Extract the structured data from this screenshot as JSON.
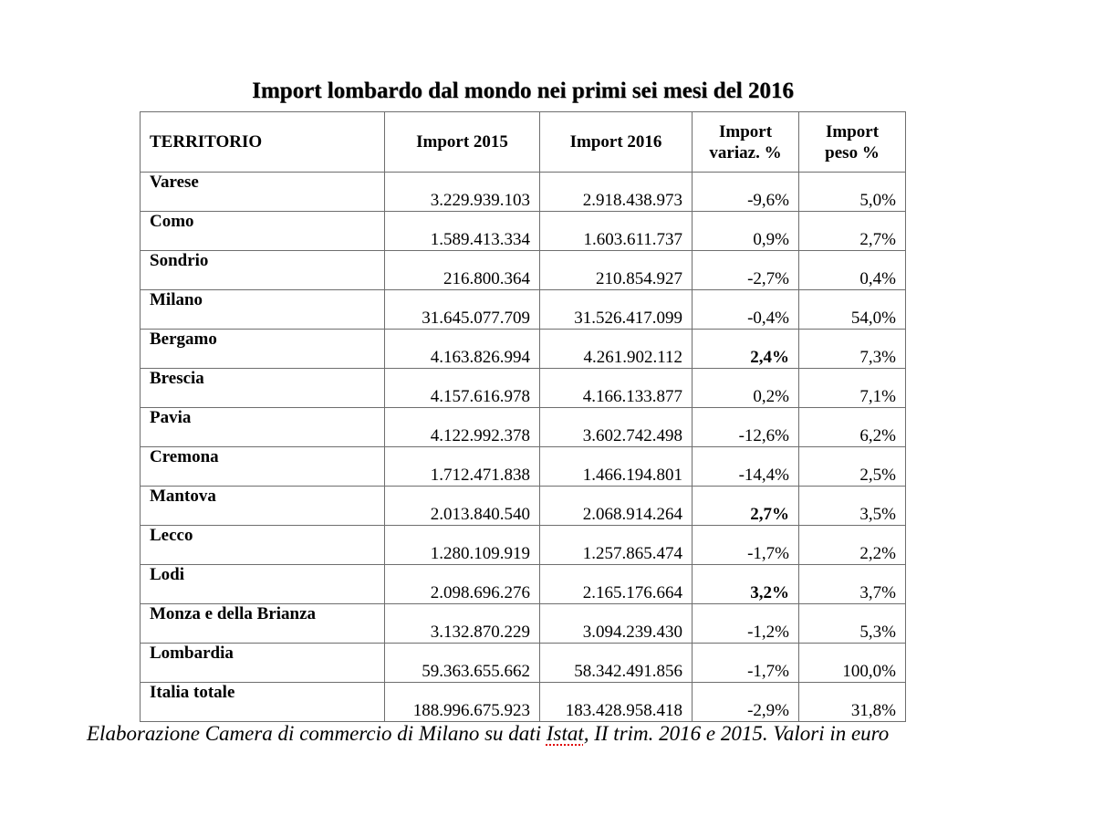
{
  "title": "Import lombardo dal mondo nei primi sei mesi del 2016",
  "table": {
    "headers": {
      "territorio": "TERRITORIO",
      "import_2015": "Import 2015",
      "import_2016": "Import 2016",
      "variaz_line1": "Import",
      "variaz_line2": "variaz. %",
      "peso_line1": "Import",
      "peso_line2": "peso %"
    },
    "rows": [
      {
        "territorio": "Varese",
        "import_2015": "3.229.939.103",
        "import_2016": "2.918.438.973",
        "variaz": "-9,6%",
        "peso": "5,0%"
      },
      {
        "territorio": "Como",
        "import_2015": "1.589.413.334",
        "import_2016": "1.603.611.737",
        "variaz": "0,9%",
        "peso": "2,7%"
      },
      {
        "territorio": "Sondrio",
        "import_2015": "216.800.364",
        "import_2016": "210.854.927",
        "variaz": "-2,7%",
        "peso": "0,4%"
      },
      {
        "territorio": "Milano",
        "import_2015": "31.645.077.709",
        "import_2016": "31.526.417.099",
        "variaz": "-0,4%",
        "peso": "54,0%"
      },
      {
        "territorio": "Bergamo",
        "import_2015": "4.163.826.994",
        "import_2016": "4.261.902.112",
        "variaz": "2,4%",
        "peso": "7,3%"
      },
      {
        "territorio": "Brescia",
        "import_2015": "4.157.616.978",
        "import_2016": "4.166.133.877",
        "variaz": "0,2%",
        "peso": "7,1%"
      },
      {
        "territorio": "Pavia",
        "import_2015": "4.122.992.378",
        "import_2016": "3.602.742.498",
        "variaz": "-12,6%",
        "peso": "6,2%"
      },
      {
        "territorio": "Cremona",
        "import_2015": "1.712.471.838",
        "import_2016": "1.466.194.801",
        "variaz": "-14,4%",
        "peso": "2,5%"
      },
      {
        "territorio": "Mantova",
        "import_2015": "2.013.840.540",
        "import_2016": "2.068.914.264",
        "variaz": "2,7%",
        "peso": "3,5%"
      },
      {
        "territorio": "Lecco",
        "import_2015": "1.280.109.919",
        "import_2016": "1.257.865.474",
        "variaz": "-1,7%",
        "peso": "2,2%"
      },
      {
        "territorio": "Lodi",
        "import_2015": "2.098.696.276",
        "import_2016": "2.165.176.664",
        "variaz": "3,2%",
        "peso": "3,7%"
      },
      {
        "territorio": "Monza e della Brianza",
        "import_2015": "3.132.870.229",
        "import_2016": "3.094.239.430",
        "variaz": "-1,2%",
        "peso": "5,3%"
      },
      {
        "territorio": "Lombardia",
        "import_2015": "59.363.655.662",
        "import_2016": "58.342.491.856",
        "variaz": "-1,7%",
        "peso": "100,0%"
      },
      {
        "territorio": "Italia totale",
        "import_2015": "188.996.675.923",
        "import_2016": "183.428.958.418",
        "variaz": "-2,9%",
        "peso": "31,8%"
      }
    ]
  },
  "footnote": {
    "before": "Elaborazione Camera di commercio di Milano su dati ",
    "flagged_word": "Istat",
    "after": ", II trim. 2016 e 2015. Valori in euro"
  },
  "colors": {
    "text": "#000000",
    "border": "#6e6e6e",
    "spellcheck_underline": "#e00000"
  }
}
